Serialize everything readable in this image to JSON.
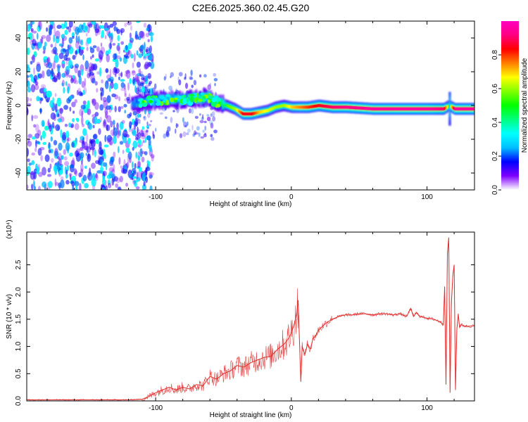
{
  "figure": {
    "title": "C2E6.2025.360.02.45.G20"
  },
  "chart_data": [
    {
      "type": "heatmap",
      "name": "spectrogram",
      "xlabel": "Height of straight line (km)",
      "ylabel": "Frequency (Hz)",
      "xlim": [
        -195,
        135
      ],
      "ylim": [
        -50,
        50
      ],
      "xticks": [
        -100,
        0,
        100
      ],
      "yticks": [
        -40,
        -20,
        0,
        20,
        40
      ],
      "description_of_values": "normalized spectral amplitude vs frequency and height",
      "noise_region_x": [
        -195,
        -110
      ],
      "ridge": {
        "x": [
          -118,
          -110,
          -100,
          -90,
          -80,
          -70,
          -62,
          -55,
          -48,
          -42,
          -36,
          -30,
          -24,
          -18,
          -12,
          -6,
          0,
          6,
          12,
          20,
          30,
          40,
          60,
          80,
          100,
          112,
          116,
          120,
          135
        ],
        "freq": [
          1,
          2,
          3,
          3.5,
          3.5,
          4,
          5,
          2,
          0,
          -2,
          -5,
          -5,
          -4,
          -3,
          -1,
          0,
          -1,
          -1,
          -1,
          0,
          -1,
          -1,
          -2,
          -2,
          -2,
          -2,
          0,
          -2,
          -2
        ],
        "amplitude": [
          0.25,
          0.3,
          0.35,
          0.4,
          0.42,
          0.45,
          0.5,
          0.5,
          0.55,
          0.6,
          0.85,
          0.85,
          0.7,
          0.65,
          0.6,
          0.6,
          0.7,
          0.75,
          0.8,
          0.85,
          0.9,
          0.92,
          0.95,
          0.95,
          0.95,
          0.9,
          0.5,
          0.95,
          0.95
        ]
      }
    },
    {
      "type": "colorbar",
      "name": "colorbar",
      "label": "Normalized spectral amplitude",
      "range": [
        0,
        1
      ],
      "ticks": [
        0.0,
        0.2,
        0.4,
        0.6,
        0.8
      ],
      "tick_labels": [
        "0.0",
        "0.2",
        "0.4",
        "0.6",
        "0.8"
      ],
      "colors": [
        "#ffffff",
        "#7f00ff",
        "#0000ff",
        "#00bfff",
        "#00ffff",
        "#00ff80",
        "#00ff00",
        "#80ff00",
        "#ffff00",
        "#ff8000",
        "#ff0000",
        "#ff0080",
        "#ff00c0"
      ]
    },
    {
      "type": "line",
      "name": "snr",
      "xlabel": "Height of straight line (km)",
      "ylabel": "SNR (10 * v/v)",
      "scale_label": "(x10⁴)",
      "xlim": [
        -195,
        135
      ],
      "ylim": [
        0,
        3.1
      ],
      "xticks": [
        -100,
        0,
        100
      ],
      "yticks": [
        0.0,
        0.5,
        1.0,
        1.5,
        2.0,
        2.5
      ],
      "ytick_labels": [
        "0.0",
        "0.5",
        "1.0",
        "1.5",
        "2.0",
        "2.5"
      ],
      "color": "#e03030",
      "series": [
        {
          "name": "SNR",
          "x": [
            -195,
            -180,
            -160,
            -140,
            -120,
            -110,
            -105,
            -100,
            -95,
            -90,
            -85,
            -80,
            -75,
            -70,
            -65,
            -60,
            -55,
            -50,
            -45,
            -40,
            -35,
            -30,
            -25,
            -20,
            -15,
            -10,
            -5,
            -2,
            0,
            2,
            4,
            5,
            6,
            7,
            8,
            10,
            12,
            14,
            16,
            18,
            20,
            25,
            30,
            35,
            40,
            45,
            50,
            55,
            60,
            65,
            70,
            75,
            80,
            85,
            88,
            90,
            92,
            95,
            100,
            105,
            110,
            112,
            113,
            114,
            115,
            116,
            117,
            118,
            119,
            120,
            121,
            122,
            123,
            124,
            125,
            127,
            130,
            135
          ],
          "y": [
            0.02,
            0.02,
            0.02,
            0.02,
            0.02,
            0.03,
            0.08,
            0.15,
            0.2,
            0.25,
            0.2,
            0.25,
            0.22,
            0.3,
            0.28,
            0.45,
            0.4,
            0.5,
            0.55,
            0.65,
            0.62,
            0.7,
            0.75,
            0.8,
            0.82,
            0.95,
            1.05,
            1.15,
            1.25,
            1.4,
            1.6,
            1.85,
            1.1,
            0.35,
            1.0,
            0.85,
            1.05,
            0.95,
            1.15,
            1.2,
            1.3,
            1.42,
            1.5,
            1.55,
            1.58,
            1.58,
            1.6,
            1.6,
            1.58,
            1.6,
            1.6,
            1.58,
            1.6,
            1.55,
            1.7,
            1.55,
            1.62,
            1.55,
            1.52,
            1.5,
            1.45,
            1.4,
            2.1,
            0.3,
            2.7,
            3.0,
            0.15,
            1.8,
            2.3,
            2.5,
            0.2,
            1.3,
            1.6,
            1.35,
            1.4,
            1.38,
            1.37,
            1.38
          ]
        }
      ]
    }
  ]
}
